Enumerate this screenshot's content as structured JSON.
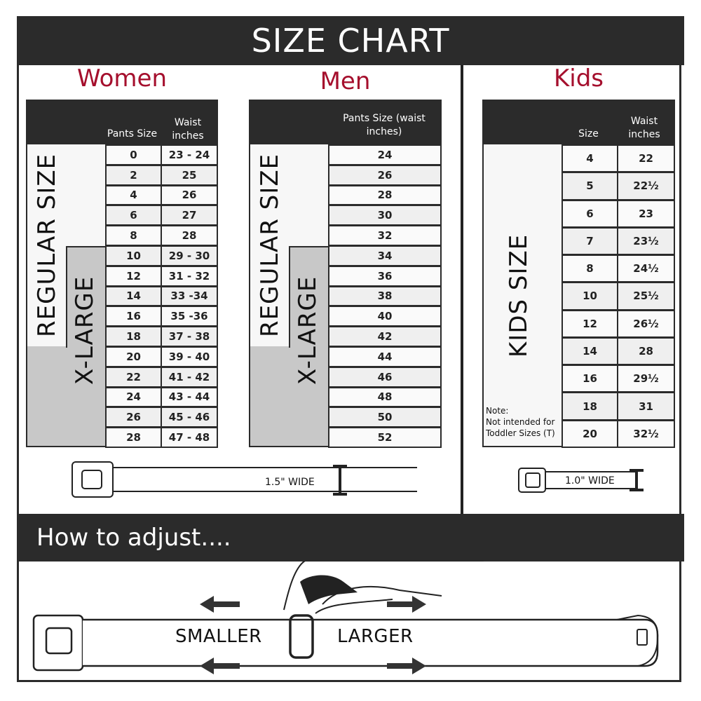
{
  "title": "SIZE CHART",
  "women": {
    "title": "Women",
    "col1": "Pants Size",
    "col2": "Waist inches",
    "regular_label": "REGULAR SIZE",
    "xlarge_label": "X-LARGE",
    "rows": [
      [
        "0",
        "23 - 24"
      ],
      [
        "2",
        "25"
      ],
      [
        "4",
        "26"
      ],
      [
        "6",
        "27"
      ],
      [
        "8",
        "28"
      ],
      [
        "10",
        "29 - 30"
      ],
      [
        "12",
        "31 - 32"
      ],
      [
        "14",
        "33 -34"
      ],
      [
        "16",
        "35 -36"
      ],
      [
        "18",
        "37 - 38"
      ],
      [
        "20",
        "39 - 40"
      ],
      [
        "22",
        "41 - 42"
      ],
      [
        "24",
        "43 - 44"
      ],
      [
        "26",
        "45 - 46"
      ],
      [
        "28",
        "47 - 48"
      ]
    ]
  },
  "men": {
    "title": "Men",
    "col1": "Pants Size (waist inches)",
    "regular_label": "REGULAR SIZE",
    "xlarge_label": "X-LARGE",
    "rows": [
      "24",
      "26",
      "28",
      "30",
      "32",
      "34",
      "36",
      "38",
      "40",
      "42",
      "44",
      "46",
      "48",
      "50",
      "52"
    ]
  },
  "kids": {
    "title": "Kids",
    "col1": "Size",
    "col2": "Waist inches",
    "label": "KIDS SIZE",
    "note_title": "Note:",
    "note_body": "Not intended for Toddler Sizes (T)",
    "rows": [
      [
        "4",
        "22"
      ],
      [
        "5",
        "22½"
      ],
      [
        "6",
        "23"
      ],
      [
        "7",
        "23½"
      ],
      [
        "8",
        "24½"
      ],
      [
        "10",
        "25½"
      ],
      [
        "12",
        "26½"
      ],
      [
        "14",
        "28"
      ],
      [
        "16",
        "29½"
      ],
      [
        "18",
        "31"
      ],
      [
        "20",
        "32½"
      ]
    ]
  },
  "adult_width": "1.5\" WIDE",
  "kids_width": "1.0\" WIDE",
  "adjust": {
    "title": "How to adjust....",
    "smaller": "SMALLER",
    "larger": "LARGER"
  },
  "colors": {
    "accent": "#a50f2d",
    "dark": "#2b2b2b",
    "xlarge": "#c8c8c8"
  }
}
